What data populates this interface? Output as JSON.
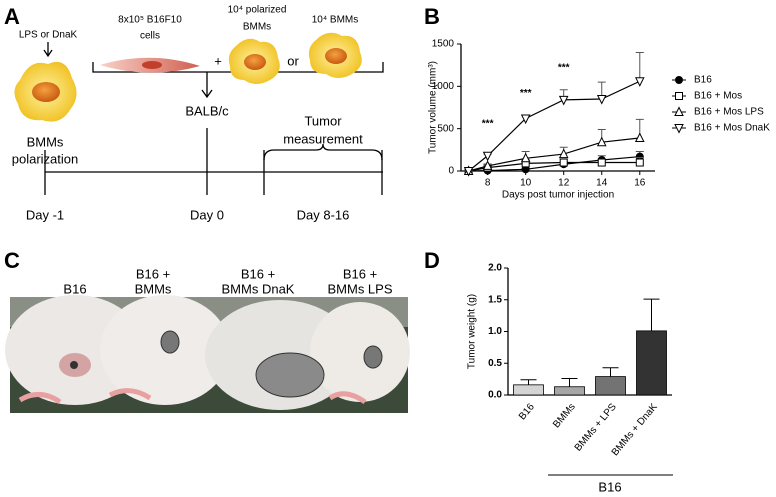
{
  "panel_labels": [
    "A",
    "B",
    "C",
    "D"
  ],
  "schematic": {
    "stimulus": "LPS or DnaK",
    "polarization": [
      "BMMs",
      "polarization"
    ],
    "tumor_cells": [
      "8x10⁵ B16F10",
      "cells"
    ],
    "plus": "+",
    "polarized_bmms": [
      "10⁴ polarized",
      "BMMs"
    ],
    "or": "or",
    "bmms": "10⁴ BMMs",
    "mouse": "BALB/c",
    "measurement": [
      "Tumor",
      "measurement"
    ],
    "days": [
      "Day -1",
      "Day 0",
      "Day 8-16"
    ]
  },
  "photo": {
    "labels": [
      [
        "B16"
      ],
      [
        "B16 +",
        "BMMs"
      ],
      [
        "B16 +",
        "BMMs DnaK"
      ],
      [
        "B16 +",
        "BMMs LPS"
      ]
    ]
  },
  "chart_data": [
    {
      "type": "line",
      "x_label": "Days post tumor injection",
      "y_label": "Tumor volume (mm³)",
      "x": [
        7,
        8,
        10,
        12,
        14,
        16
      ],
      "xlim": [
        6.6,
        16.8
      ],
      "xticks": [
        8,
        10,
        12,
        14,
        16
      ],
      "ylim": [
        0,
        1500
      ],
      "yticks": [
        0,
        500,
        1000,
        1500
      ],
      "annotations": [
        "***",
        "***",
        "***"
      ],
      "series": [
        {
          "name": "B16",
          "color": "#000000",
          "marker": "filled-circle",
          "values": [
            0,
            5,
            20,
            80,
            130,
            170
          ],
          "errors": [
            0,
            5,
            10,
            30,
            50,
            60
          ]
        },
        {
          "name": "B16 + Mos",
          "color": "#000000",
          "marker": "square",
          "values": [
            0,
            40,
            90,
            100,
            100,
            100
          ],
          "errors": [
            0,
            10,
            40,
            40,
            40,
            60
          ]
        },
        {
          "name": "B16 + Mos LPS",
          "color": "#000000",
          "marker": "triangle-up",
          "values": [
            0,
            60,
            150,
            200,
            340,
            390
          ],
          "errors": [
            0,
            20,
            80,
            80,
            150,
            220
          ]
        },
        {
          "name": "B16 + Mos DnaK",
          "color": "#000000",
          "marker": "triangle-down",
          "values": [
            0,
            180,
            620,
            840,
            850,
            1060
          ],
          "errors": [
            0,
            20,
            40,
            120,
            200,
            340
          ]
        }
      ]
    },
    {
      "type": "bar",
      "y_label": "Tumor weight (g)",
      "categories": [
        "B16",
        "BMMs",
        "BMMs + LPS",
        "BMMs + DnaK"
      ],
      "values": [
        0.16,
        0.13,
        0.29,
        1.01
      ],
      "errors": [
        0.08,
        0.13,
        0.14,
        0.5
      ],
      "colors": [
        "#d4d4d4",
        "#a6a6a6",
        "#737373",
        "#333333"
      ],
      "ylim": [
        0,
        2
      ],
      "yticks": [
        {
          "value": 0,
          "label": "0.0"
        },
        {
          "value": 0.5,
          "label": "0.5"
        },
        {
          "value": 1,
          "label": "1.0"
        },
        {
          "value": 1.5,
          "label": "1.5"
        },
        {
          "value": 2,
          "label": "2.0"
        }
      ],
      "group_label": "B16"
    }
  ]
}
